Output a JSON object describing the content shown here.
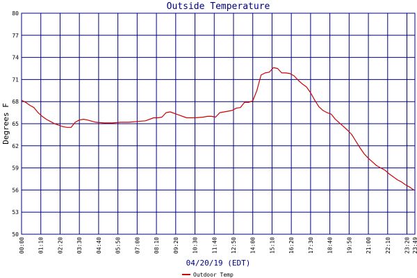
{
  "chart_data": {
    "type": "line",
    "title": "Outside Temperature",
    "xlabel": "04/20/19 (EDT)",
    "ylabel": "Degrees F",
    "ylim": [
      50,
      80
    ],
    "y_ticks": [
      50,
      53,
      56,
      59,
      62,
      65,
      68,
      71,
      74,
      77,
      80
    ],
    "x_tick_labels": [
      "00:00",
      "01:10",
      "02:20",
      "03:30",
      "04:40",
      "05:50",
      "07:00",
      "08:10",
      "09:20",
      "10:30",
      "11:40",
      "12:50",
      "14:00",
      "15:10",
      "16:20",
      "17:30",
      "18:40",
      "19:50",
      "21:00",
      "22:10",
      "23:20",
      "23:49"
    ],
    "x_axis_hours": [
      0,
      23.817
    ],
    "grid": true,
    "legend_position": "bottom-left",
    "series": [
      {
        "name": "Outdoor Temp",
        "color": "#cc0000",
        "x_hours": [
          0.0,
          0.25,
          0.5,
          0.75,
          1.0,
          1.25,
          1.5,
          1.75,
          2.0,
          2.25,
          2.5,
          2.75,
          3.0,
          3.25,
          3.5,
          3.75,
          4.0,
          4.5,
          5.0,
          5.5,
          6.0,
          6.5,
          7.0,
          7.5,
          8.0,
          8.25,
          8.5,
          8.75,
          9.0,
          9.5,
          10.0,
          10.5,
          11.0,
          11.25,
          11.5,
          11.75,
          12.0,
          12.5,
          12.75,
          13.0,
          13.25,
          13.5,
          13.75,
          14.0,
          14.25,
          14.5,
          14.75,
          15.0,
          15.25,
          15.5,
          15.75,
          16.0,
          16.25,
          16.5,
          16.75,
          17.0,
          17.25,
          17.5,
          17.75,
          18.0,
          18.25,
          18.5,
          18.75,
          19.0,
          19.25,
          19.5,
          19.75,
          20.0,
          20.25,
          20.5,
          20.75,
          21.0,
          21.25,
          21.5,
          21.75,
          22.0,
          22.25,
          22.5,
          22.75,
          23.0,
          23.25,
          23.5,
          23.75
        ],
        "values": [
          68.2,
          67.9,
          67.5,
          67.2,
          66.5,
          66.0,
          65.6,
          65.3,
          65.0,
          64.8,
          64.6,
          64.5,
          64.5,
          65.2,
          65.5,
          65.6,
          65.5,
          65.2,
          65.1,
          65.1,
          65.2,
          65.2,
          65.3,
          65.4,
          65.8,
          65.8,
          65.9,
          66.5,
          66.6,
          66.2,
          65.8,
          65.8,
          65.9,
          66.0,
          66.0,
          65.9,
          66.5,
          66.7,
          66.8,
          67.1,
          67.2,
          67.9,
          67.9,
          68.1,
          69.5,
          71.6,
          71.9,
          72.0,
          72.6,
          72.5,
          71.9,
          71.9,
          71.8,
          71.5,
          70.9,
          70.4,
          70.0,
          69.2,
          68.2,
          67.3,
          66.8,
          66.5,
          66.3,
          65.6,
          65.1,
          64.6,
          64.1,
          63.5,
          62.6,
          61.7,
          60.9,
          60.3,
          59.8,
          59.3,
          59.0,
          58.7,
          58.2,
          57.8,
          57.4,
          57.1,
          56.7,
          56.4,
          56.0
        ]
      }
    ]
  }
}
